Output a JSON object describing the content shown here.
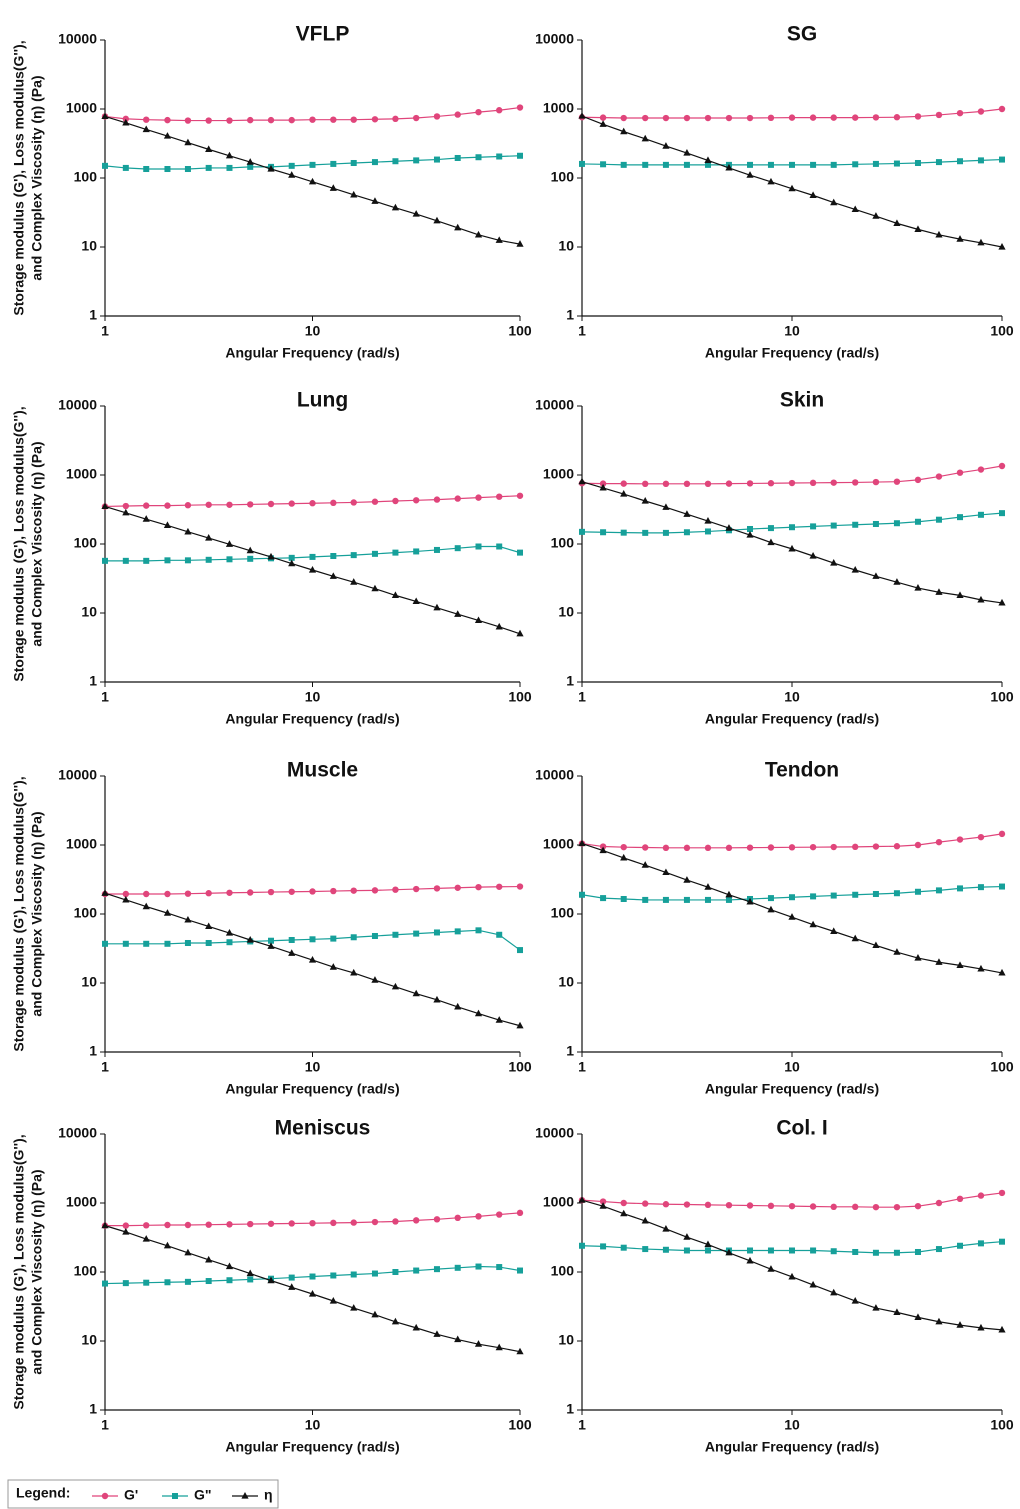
{
  "chart_data": [
    {
      "type": "line",
      "title": "VFLP",
      "x_label": "Angular Frequency (rad/s)",
      "y_label": [
        "Storage modulus (G'), Loss modulus(G''),",
        "and Complex Viscosity (η) (Pa)"
      ],
      "log_x": true,
      "log_y": true,
      "x": [
        1,
        1.26,
        1.58,
        2,
        2.51,
        3.16,
        3.98,
        5.01,
        6.31,
        7.94,
        10,
        12.6,
        15.8,
        20,
        25.1,
        31.6,
        39.8,
        50.1,
        63.1,
        79.4,
        100
      ],
      "xlim": [
        1,
        100
      ],
      "xticks": [
        1,
        10,
        100
      ],
      "ylim": [
        1,
        10000
      ],
      "yticks": [
        1,
        10,
        100,
        1000,
        10000
      ],
      "series": [
        {
          "name": "G'",
          "color": "#e0457b",
          "marker": "circle",
          "values": [
            780,
            720,
            700,
            690,
            680,
            680,
            680,
            690,
            690,
            690,
            700,
            700,
            700,
            710,
            720,
            740,
            780,
            830,
            900,
            960,
            1050
          ]
        },
        {
          "name": "G\"",
          "color": "#16a09a",
          "marker": "square",
          "values": [
            150,
            140,
            135,
            135,
            135,
            140,
            140,
            145,
            145,
            150,
            155,
            160,
            165,
            170,
            175,
            180,
            185,
            195,
            200,
            205,
            210
          ]
        },
        {
          "name": "η",
          "color": "#111111",
          "marker": "triangle",
          "values": [
            780,
            630,
            505,
            405,
            325,
            260,
            210,
            170,
            135,
            110,
            88,
            71,
            57,
            46,
            37,
            30,
            24,
            19,
            15,
            12.5,
            11
          ]
        }
      ]
    },
    {
      "type": "line",
      "title": "SG",
      "x_label": "Angular Frequency (rad/s)",
      "log_x": true,
      "log_y": true,
      "x": [
        1,
        1.26,
        1.58,
        2,
        2.51,
        3.16,
        3.98,
        5.01,
        6.31,
        7.94,
        10,
        12.6,
        15.8,
        20,
        25.1,
        31.6,
        39.8,
        50.1,
        63.1,
        79.4,
        100
      ],
      "xlim": [
        1,
        100
      ],
      "xticks": [
        1,
        10,
        100
      ],
      "ylim": [
        1,
        10000
      ],
      "yticks": [
        1,
        10,
        100,
        1000,
        10000
      ],
      "series": [
        {
          "name": "G'",
          "color": "#e0457b",
          "marker": "circle",
          "values": [
            760,
            750,
            740,
            740,
            740,
            740,
            740,
            740,
            740,
            745,
            750,
            750,
            750,
            750,
            755,
            760,
            780,
            820,
            870,
            920,
            1000
          ]
        },
        {
          "name": "G\"",
          "color": "#16a09a",
          "marker": "square",
          "values": [
            160,
            158,
            155,
            155,
            155,
            155,
            155,
            155,
            155,
            155,
            155,
            155,
            155,
            158,
            160,
            162,
            165,
            170,
            175,
            180,
            185
          ]
        },
        {
          "name": "η",
          "color": "#111111",
          "marker": "triangle",
          "values": [
            790,
            600,
            470,
            370,
            290,
            230,
            180,
            140,
            110,
            88,
            70,
            56,
            44,
            35,
            28,
            22,
            18,
            15,
            13,
            11.5,
            10
          ]
        }
      ]
    },
    {
      "type": "line",
      "title": "Lung",
      "x_label": "Angular Frequency (rad/s)",
      "y_label": [
        "Storage modulus (G'), Loss modulus(G''),",
        "and Complex Viscosity (η) (Pa)"
      ],
      "log_x": true,
      "log_y": true,
      "x": [
        1,
        1.26,
        1.58,
        2,
        2.51,
        3.16,
        3.98,
        5.01,
        6.31,
        7.94,
        10,
        12.6,
        15.8,
        20,
        25.1,
        31.6,
        39.8,
        50.1,
        63.1,
        79.4,
        100
      ],
      "xlim": [
        1,
        100
      ],
      "xticks": [
        1,
        10,
        100
      ],
      "ylim": [
        1,
        10000
      ],
      "yticks": [
        1,
        10,
        100,
        1000,
        10000
      ],
      "series": [
        {
          "name": "G'",
          "color": "#e0457b",
          "marker": "circle",
          "values": [
            350,
            355,
            360,
            360,
            365,
            370,
            370,
            375,
            380,
            385,
            390,
            395,
            400,
            410,
            420,
            430,
            440,
            455,
            470,
            485,
            500
          ]
        },
        {
          "name": "G\"",
          "color": "#16a09a",
          "marker": "square",
          "values": [
            57,
            57,
            57,
            58,
            58,
            59,
            60,
            61,
            62,
            63,
            65,
            67,
            69,
            72,
            75,
            78,
            82,
            87,
            92,
            92,
            75
          ]
        },
        {
          "name": "η",
          "color": "#111111",
          "marker": "triangle",
          "values": [
            350,
            283,
            229,
            186,
            150,
            122,
            99,
            80,
            65,
            52,
            42,
            34,
            28,
            22.5,
            18,
            14.7,
            11.9,
            9.6,
            7.8,
            6.3,
            5
          ]
        }
      ]
    },
    {
      "type": "line",
      "title": "Skin",
      "x_label": "Angular Frequency (rad/s)",
      "log_x": true,
      "log_y": true,
      "x": [
        1,
        1.26,
        1.58,
        2,
        2.51,
        3.16,
        3.98,
        5.01,
        6.31,
        7.94,
        10,
        12.6,
        15.8,
        20,
        25.1,
        31.6,
        39.8,
        50.1,
        63.1,
        79.4,
        100
      ],
      "xlim": [
        1,
        100
      ],
      "xticks": [
        1,
        10,
        100
      ],
      "ylim": [
        1,
        10000
      ],
      "yticks": [
        1,
        10,
        100,
        1000,
        10000
      ],
      "series": [
        {
          "name": "G'",
          "color": "#e0457b",
          "marker": "circle",
          "values": [
            760,
            750,
            750,
            745,
            745,
            745,
            745,
            750,
            755,
            760,
            765,
            770,
            775,
            780,
            790,
            800,
            850,
            950,
            1080,
            1200,
            1350
          ]
        },
        {
          "name": "G\"",
          "color": "#16a09a",
          "marker": "square",
          "values": [
            150,
            148,
            146,
            145,
            145,
            148,
            152,
            158,
            165,
            170,
            175,
            180,
            185,
            190,
            195,
            200,
            210,
            225,
            245,
            265,
            280
          ]
        },
        {
          "name": "η",
          "color": "#111111",
          "marker": "triangle",
          "values": [
            800,
            650,
            530,
            420,
            340,
            270,
            215,
            170,
            135,
            105,
            85,
            67,
            53,
            42,
            34,
            28,
            23,
            20,
            18,
            15.5,
            14
          ]
        }
      ]
    },
    {
      "type": "line",
      "title": "Muscle",
      "x_label": "Angular Frequency (rad/s)",
      "y_label": [
        "Storage modulus (G'), Loss modulus(G''),",
        "and Complex Viscosity (η) (Pa)"
      ],
      "log_x": true,
      "log_y": true,
      "x": [
        1,
        1.26,
        1.58,
        2,
        2.51,
        3.16,
        3.98,
        5.01,
        6.31,
        7.94,
        10,
        12.6,
        15.8,
        20,
        25.1,
        31.6,
        39.8,
        50.1,
        63.1,
        79.4,
        100
      ],
      "xlim": [
        1,
        100
      ],
      "xticks": [
        1,
        10,
        100
      ],
      "ylim": [
        1,
        10000
      ],
      "yticks": [
        1,
        10,
        100,
        1000,
        10000
      ],
      "series": [
        {
          "name": "G'",
          "color": "#e0457b",
          "marker": "circle",
          "values": [
            195,
            195,
            195,
            195,
            197,
            200,
            203,
            205,
            208,
            210,
            212,
            215,
            218,
            220,
            225,
            230,
            235,
            240,
            245,
            248,
            250
          ]
        },
        {
          "name": "G\"",
          "color": "#16a09a",
          "marker": "square",
          "values": [
            37,
            37,
            37,
            37,
            38,
            38,
            39,
            40,
            41,
            42,
            43,
            44,
            46,
            48,
            50,
            52,
            54,
            56,
            58,
            50,
            30
          ]
        },
        {
          "name": "η",
          "color": "#111111",
          "marker": "triangle",
          "values": [
            200,
            160,
            128,
            103,
            82,
            66,
            53,
            42,
            34,
            27,
            21.5,
            17,
            14,
            11,
            8.8,
            7,
            5.7,
            4.5,
            3.6,
            2.9,
            2.4
          ]
        }
      ]
    },
    {
      "type": "line",
      "title": "Tendon",
      "x_label": "Angular Frequency (rad/s)",
      "log_x": true,
      "log_y": true,
      "x": [
        1,
        1.26,
        1.58,
        2,
        2.51,
        3.16,
        3.98,
        5.01,
        6.31,
        7.94,
        10,
        12.6,
        15.8,
        20,
        25.1,
        31.6,
        39.8,
        50.1,
        63.1,
        79.4,
        100
      ],
      "xlim": [
        1,
        100
      ],
      "xticks": [
        1,
        10,
        100
      ],
      "ylim": [
        1,
        10000
      ],
      "yticks": [
        1,
        10,
        100,
        1000,
        10000
      ],
      "series": [
        {
          "name": "G'",
          "color": "#e0457b",
          "marker": "circle",
          "values": [
            1050,
            950,
            930,
            920,
            910,
            910,
            910,
            910,
            915,
            920,
            925,
            930,
            935,
            940,
            950,
            960,
            1000,
            1100,
            1200,
            1300,
            1450
          ]
        },
        {
          "name": "G\"",
          "color": "#16a09a",
          "marker": "square",
          "values": [
            190,
            170,
            165,
            160,
            160,
            160,
            160,
            160,
            165,
            170,
            175,
            180,
            185,
            190,
            195,
            200,
            210,
            220,
            235,
            245,
            250
          ]
        },
        {
          "name": "η",
          "color": "#111111",
          "marker": "triangle",
          "values": [
            1050,
            830,
            650,
            510,
            400,
            310,
            245,
            190,
            150,
            115,
            90,
            70,
            56,
            44,
            35,
            28,
            23,
            20,
            18,
            16,
            14
          ]
        }
      ]
    },
    {
      "type": "line",
      "title": "Meniscus",
      "x_label": "Angular Frequency (rad/s)",
      "y_label": [
        "Storage modulus (G'), Loss modulus(G''),",
        "and Complex Viscosity (η) (Pa)"
      ],
      "log_x": true,
      "log_y": true,
      "x": [
        1,
        1.26,
        1.58,
        2,
        2.51,
        3.16,
        3.98,
        5.01,
        6.31,
        7.94,
        10,
        12.6,
        15.8,
        20,
        25.1,
        31.6,
        39.8,
        50.1,
        63.1,
        79.4,
        100
      ],
      "xlim": [
        1,
        100
      ],
      "xticks": [
        1,
        10,
        100
      ],
      "ylim": [
        1,
        10000
      ],
      "yticks": [
        1,
        10,
        100,
        1000,
        10000
      ],
      "series": [
        {
          "name": "G'",
          "color": "#e0457b",
          "marker": "circle",
          "values": [
            470,
            470,
            475,
            480,
            480,
            485,
            490,
            495,
            500,
            505,
            510,
            515,
            520,
            530,
            540,
            560,
            580,
            610,
            640,
            680,
            720
          ]
        },
        {
          "name": "G\"",
          "color": "#16a09a",
          "marker": "square",
          "values": [
            68,
            69,
            70,
            71,
            72,
            74,
            76,
            78,
            80,
            83,
            86,
            89,
            92,
            95,
            100,
            105,
            110,
            115,
            120,
            118,
            105
          ]
        },
        {
          "name": "η",
          "color": "#111111",
          "marker": "triangle",
          "values": [
            470,
            380,
            300,
            240,
            190,
            150,
            120,
            95,
            75,
            60,
            48,
            38,
            30,
            24,
            19,
            15.5,
            12.5,
            10.5,
            9,
            8,
            7
          ]
        }
      ]
    },
    {
      "type": "line",
      "title": "Col. I",
      "x_label": "Angular Frequency (rad/s)",
      "log_x": true,
      "log_y": true,
      "x": [
        1,
        1.26,
        1.58,
        2,
        2.51,
        3.16,
        3.98,
        5.01,
        6.31,
        7.94,
        10,
        12.6,
        15.8,
        20,
        25.1,
        31.6,
        39.8,
        50.1,
        63.1,
        79.4,
        100
      ],
      "xlim": [
        1,
        100
      ],
      "xticks": [
        1,
        10,
        100
      ],
      "ylim": [
        1,
        10000
      ],
      "yticks": [
        1,
        10,
        100,
        1000,
        10000
      ],
      "series": [
        {
          "name": "G'",
          "color": "#e0457b",
          "marker": "circle",
          "values": [
            1100,
            1050,
            1000,
            980,
            960,
            950,
            940,
            930,
            920,
            910,
            900,
            890,
            880,
            880,
            870,
            870,
            900,
            1000,
            1150,
            1280,
            1400
          ]
        },
        {
          "name": "G\"",
          "color": "#16a09a",
          "marker": "square",
          "values": [
            240,
            235,
            225,
            215,
            210,
            205,
            205,
            205,
            205,
            205,
            205,
            205,
            200,
            195,
            190,
            190,
            195,
            215,
            240,
            260,
            275
          ]
        },
        {
          "name": "η",
          "color": "#111111",
          "marker": "triangle",
          "values": [
            1100,
            900,
            700,
            550,
            420,
            320,
            250,
            190,
            145,
            110,
            85,
            65,
            50,
            38,
            30,
            26,
            22,
            19,
            17,
            15.5,
            14.5
          ]
        }
      ]
    }
  ],
  "legend": {
    "label": "Legend:"
  }
}
